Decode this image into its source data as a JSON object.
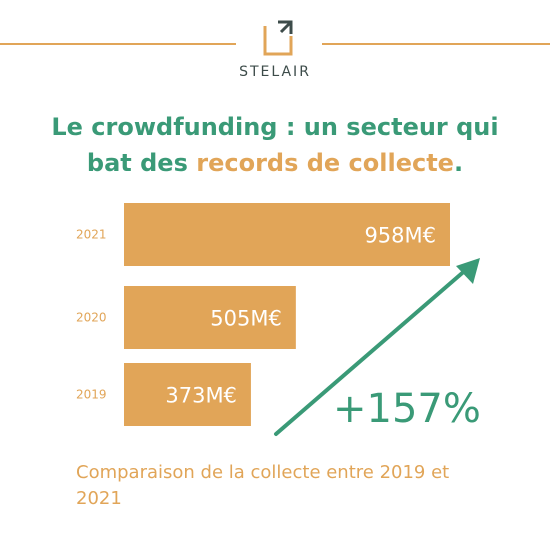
{
  "brand": {
    "name": "STELAIR",
    "color": "#e1a558",
    "text_color": "#3d4c4a"
  },
  "headline": {
    "part1": "Le crowdfunding : un secteur qui",
    "part2": "bat des ",
    "accent": "records de collecte",
    "part3": "."
  },
  "caption": "Comparaison de la collecte entre 2019 et 2021",
  "colors": {
    "bar": "#e1a558",
    "green": "#3a9a77",
    "year_label": "#e1a558",
    "bar_label": "#ffffff"
  },
  "chart_data": {
    "type": "bar",
    "orientation": "horizontal",
    "categories": [
      "2021",
      "2020",
      "2019"
    ],
    "values": [
      958,
      505,
      373
    ],
    "value_labels": [
      "958M€",
      "505M€",
      "373M€"
    ],
    "unit": "M€",
    "title": "",
    "xlabel": "",
    "ylabel": "",
    "xlim": [
      0,
      958
    ],
    "annotation": "+157%",
    "trend_arrow": true
  }
}
